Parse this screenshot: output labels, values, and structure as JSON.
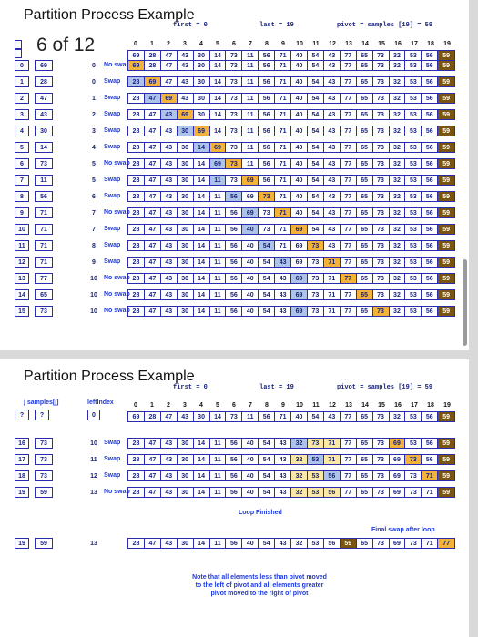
{
  "slide1": {
    "title": "Partition Process Example",
    "counter": "6 of 12",
    "labels": {
      "first": "first = 0",
      "last": "last = 19",
      "pivot": "pivot = samples [19] = 59"
    },
    "indices": [
      "0",
      "1",
      "2",
      "3",
      "4",
      "5",
      "6",
      "7",
      "8",
      "9",
      "10",
      "11",
      "12",
      "13",
      "14",
      "15",
      "16",
      "17",
      "18",
      "19"
    ],
    "initial": [
      "69",
      "28",
      "47",
      "43",
      "30",
      "14",
      "73",
      "11",
      "56",
      "71",
      "40",
      "54",
      "43",
      "77",
      "65",
      "73",
      "32",
      "53",
      "56",
      "59"
    ],
    "left_j": [
      "0",
      "1",
      "2",
      "3",
      "4",
      "5",
      "6",
      "7",
      "8",
      "9",
      "10",
      "11",
      "12",
      "13",
      "14",
      "15"
    ],
    "left_vals": [
      "69",
      "28",
      "47",
      "43",
      "30",
      "14",
      "73",
      "11",
      "56",
      "71",
      "71",
      "71",
      "71",
      "77",
      "65",
      "73"
    ],
    "rows": [
      {
        "left": "0",
        "action": "No swap",
        "cells": [
          "69",
          "28",
          "47",
          "43",
          "30",
          "14",
          "73",
          "11",
          "56",
          "71",
          "40",
          "54",
          "43",
          "77",
          "65",
          "73",
          "32",
          "53",
          "56",
          "59"
        ]
      },
      {
        "left": "0",
        "action": "Swap",
        "cells": [
          "28",
          "69",
          "47",
          "43",
          "30",
          "14",
          "73",
          "11",
          "56",
          "71",
          "40",
          "54",
          "43",
          "77",
          "65",
          "73",
          "32",
          "53",
          "56",
          "59"
        ]
      },
      {
        "left": "1",
        "action": "Swap",
        "cells": [
          "28",
          "47",
          "69",
          "43",
          "30",
          "14",
          "73",
          "11",
          "56",
          "71",
          "40",
          "54",
          "43",
          "77",
          "65",
          "73",
          "32",
          "53",
          "56",
          "59"
        ]
      },
      {
        "left": "2",
        "action": "Swap",
        "cells": [
          "28",
          "47",
          "43",
          "69",
          "30",
          "14",
          "73",
          "11",
          "56",
          "71",
          "40",
          "54",
          "43",
          "77",
          "65",
          "73",
          "32",
          "53",
          "56",
          "59"
        ]
      },
      {
        "left": "3",
        "action": "Swap",
        "cells": [
          "28",
          "47",
          "43",
          "30",
          "69",
          "14",
          "73",
          "11",
          "56",
          "71",
          "40",
          "54",
          "43",
          "77",
          "65",
          "73",
          "32",
          "53",
          "56",
          "59"
        ]
      },
      {
        "left": "4",
        "action": "Swap",
        "cells": [
          "28",
          "47",
          "43",
          "30",
          "14",
          "69",
          "73",
          "11",
          "56",
          "71",
          "40",
          "54",
          "43",
          "77",
          "65",
          "73",
          "32",
          "53",
          "56",
          "59"
        ]
      },
      {
        "left": "5",
        "action": "No swap",
        "cells": [
          "28",
          "47",
          "43",
          "30",
          "14",
          "69",
          "73",
          "11",
          "56",
          "71",
          "40",
          "54",
          "43",
          "77",
          "65",
          "73",
          "32",
          "53",
          "56",
          "59"
        ]
      },
      {
        "left": "5",
        "action": "Swap",
        "cells": [
          "28",
          "47",
          "43",
          "30",
          "14",
          "11",
          "73",
          "69",
          "56",
          "71",
          "40",
          "54",
          "43",
          "77",
          "65",
          "73",
          "32",
          "53",
          "56",
          "59"
        ]
      },
      {
        "left": "6",
        "action": "Swap",
        "cells": [
          "28",
          "47",
          "43",
          "30",
          "14",
          "11",
          "56",
          "69",
          "73",
          "71",
          "40",
          "54",
          "43",
          "77",
          "65",
          "73",
          "32",
          "53",
          "56",
          "59"
        ]
      },
      {
        "left": "7",
        "action": "No swap",
        "cells": [
          "28",
          "47",
          "43",
          "30",
          "14",
          "11",
          "56",
          "69",
          "73",
          "71",
          "40",
          "54",
          "43",
          "77",
          "65",
          "73",
          "32",
          "53",
          "56",
          "59"
        ]
      },
      {
        "left": "7",
        "action": "Swap",
        "cells": [
          "28",
          "47",
          "43",
          "30",
          "14",
          "11",
          "56",
          "40",
          "73",
          "71",
          "69",
          "54",
          "43",
          "77",
          "65",
          "73",
          "32",
          "53",
          "56",
          "59"
        ]
      },
      {
        "left": "8",
        "action": "Swap",
        "cells": [
          "28",
          "47",
          "43",
          "30",
          "14",
          "11",
          "56",
          "40",
          "54",
          "71",
          "69",
          "73",
          "43",
          "77",
          "65",
          "73",
          "32",
          "53",
          "56",
          "59"
        ]
      },
      {
        "left": "9",
        "action": "Swap",
        "cells": [
          "28",
          "47",
          "43",
          "30",
          "14",
          "11",
          "56",
          "40",
          "54",
          "43",
          "69",
          "73",
          "71",
          "77",
          "65",
          "73",
          "32",
          "53",
          "56",
          "59"
        ]
      },
      {
        "left": "10",
        "action": "No swap",
        "cells": [
          "28",
          "47",
          "43",
          "30",
          "14",
          "11",
          "56",
          "40",
          "54",
          "43",
          "69",
          "73",
          "71",
          "77",
          "65",
          "73",
          "32",
          "53",
          "56",
          "59"
        ]
      },
      {
        "left": "10",
        "action": "No swap",
        "cells": [
          "28",
          "47",
          "43",
          "30",
          "14",
          "11",
          "56",
          "40",
          "54",
          "43",
          "69",
          "73",
          "71",
          "77",
          "65",
          "73",
          "32",
          "53",
          "56",
          "59"
        ]
      },
      {
        "left": "10",
        "action": "No swap",
        "cells": [
          "28",
          "47",
          "43",
          "30",
          "14",
          "11",
          "56",
          "40",
          "54",
          "43",
          "69",
          "73",
          "71",
          "77",
          "65",
          "73",
          "32",
          "53",
          "56",
          "59"
        ]
      }
    ]
  },
  "slide2": {
    "title": "Partition Process Example",
    "labels": {
      "first": "first = 0",
      "last": "last = 19",
      "pivot": "pivot = samples [19] = 59",
      "j_samples": "j  samples[j]",
      "leftindex": "leftIndex"
    },
    "top_left": [
      "?",
      "?",
      "0"
    ],
    "indices": [
      "0",
      "1",
      "2",
      "3",
      "4",
      "5",
      "6",
      "7",
      "8",
      "9",
      "10",
      "11",
      "12",
      "13",
      "14",
      "15",
      "16",
      "17",
      "18",
      "19"
    ],
    "initial": [
      "69",
      "28",
      "47",
      "43",
      "30",
      "14",
      "73",
      "11",
      "56",
      "71",
      "40",
      "54",
      "43",
      "77",
      "65",
      "73",
      "32",
      "53",
      "56",
      "59"
    ],
    "rows": [
      {
        "j": "16",
        "val": "73",
        "left": "10",
        "action": "Swap",
        "cells": [
          "28",
          "47",
          "43",
          "30",
          "14",
          "11",
          "56",
          "40",
          "54",
          "43",
          "32",
          "73",
          "71",
          "77",
          "65",
          "73",
          "69",
          "53",
          "56",
          "59"
        ]
      },
      {
        "j": "17",
        "val": "73",
        "left": "11",
        "action": "Swap",
        "cells": [
          "28",
          "47",
          "43",
          "30",
          "14",
          "11",
          "56",
          "40",
          "54",
          "43",
          "32",
          "53",
          "71",
          "77",
          "65",
          "73",
          "69",
          "73",
          "56",
          "59"
        ]
      },
      {
        "j": "18",
        "val": "73",
        "left": "12",
        "action": "Swap",
        "cells": [
          "28",
          "47",
          "43",
          "30",
          "14",
          "11",
          "56",
          "40",
          "54",
          "43",
          "32",
          "53",
          "56",
          "77",
          "65",
          "73",
          "69",
          "73",
          "71",
          "59"
        ]
      },
      {
        "j": "19",
        "val": "59",
        "left": "13",
        "action": "No swap",
        "cells": [
          "28",
          "47",
          "43",
          "30",
          "14",
          "11",
          "56",
          "40",
          "54",
          "43",
          "32",
          "53",
          "56",
          "77",
          "65",
          "73",
          "69",
          "73",
          "71",
          "59"
        ]
      }
    ],
    "loop_finished": "Loop Finished",
    "final_label": "Final swap after loop",
    "final_left": [
      "19",
      "59",
      "13"
    ],
    "final": [
      "28",
      "47",
      "43",
      "30",
      "14",
      "11",
      "56",
      "40",
      "54",
      "43",
      "32",
      "53",
      "56",
      "59",
      "65",
      "73",
      "69",
      "73",
      "71",
      "77"
    ],
    "note_lines": [
      "Note that all elements less than pivot moved",
      "to the left of pivot and all elements greater",
      "pivot moved to the right of pivot"
    ]
  },
  "colors": {
    "pivot": "#7a5512",
    "highlight": "#f3b23a",
    "blue": "#aec3ea",
    "yellow": "#fbe7a8",
    "text": "#1a237e"
  }
}
